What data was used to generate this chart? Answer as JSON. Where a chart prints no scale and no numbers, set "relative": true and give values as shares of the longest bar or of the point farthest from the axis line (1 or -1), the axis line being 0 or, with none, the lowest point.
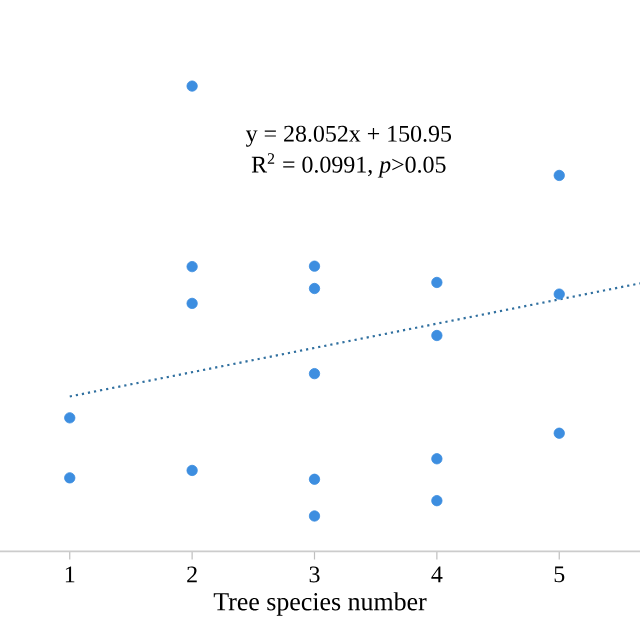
{
  "chart_data": {
    "type": "scatter",
    "relative": true,
    "xlabel": "Tree species number",
    "annotations": [
      "y = 28.052x + 150.95",
      "R$^{2}$ = 0.0991, *p*>0.05"
    ],
    "xlim": [
      0.43,
      5.66
    ],
    "xticks": [
      1,
      2,
      3,
      4,
      5
    ],
    "grid": false,
    "series": [
      {
        "color": "#3d8ee0",
        "marker": "circle",
        "x": [
          1,
          1,
          2,
          2,
          2,
          2,
          3,
          3,
          3,
          3,
          3,
          4,
          4,
          4,
          4,
          5,
          5,
          5
        ],
        "values": [
          0.287,
          0.158,
          1.0,
          0.612,
          0.533,
          0.174,
          0.613,
          0.565,
          0.382,
          0.155,
          0.076,
          0.578,
          0.464,
          0.199,
          0.109,
          0.808,
          0.553,
          0.254
        ]
      },
      {
        "type": "line",
        "color": "#2f6f9f",
        "line_style": "dotted",
        "marker": "none",
        "x": [
          1,
          5.66
        ],
        "values": [
          0.333,
          0.576
        ]
      }
    ]
  }
}
